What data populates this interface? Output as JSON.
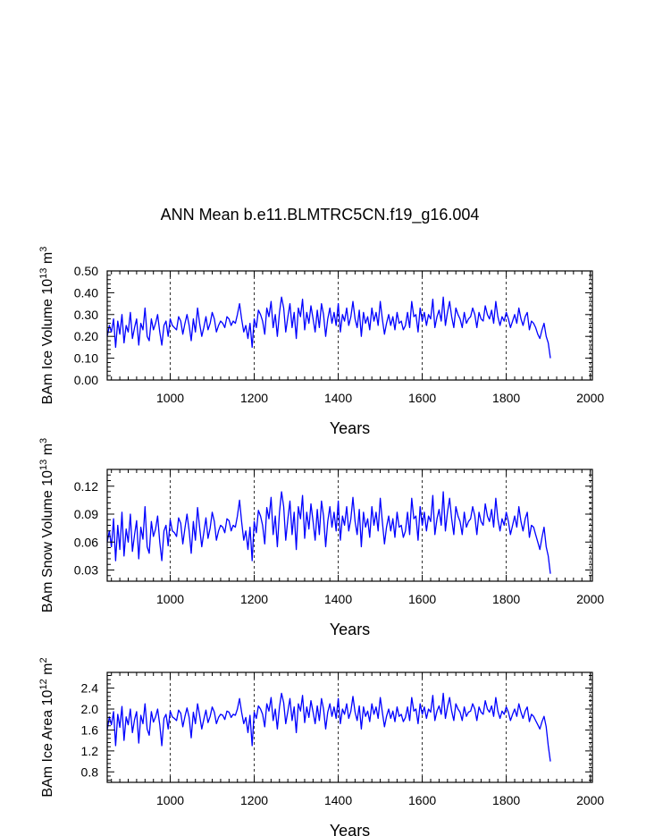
{
  "figure_title": "ANN Mean b.e11.BLMTRC5CN.f19_g16.004",
  "chart_data": [
    {
      "type": "line",
      "name": "ice-volume",
      "ylabel_pre": "BAm Ice Volume 10",
      "ylabel_exp1": "13",
      "ylabel_mid": " m",
      "ylabel_exp2": "3",
      "xlabel": "Years",
      "xlim": [
        850,
        2005
      ],
      "ylim": [
        0.0,
        0.5
      ],
      "xticks": [
        1000,
        1200,
        1400,
        1600,
        1800,
        2000
      ],
      "xtick_labels": [
        "1000",
        "1200",
        "1400",
        "1600",
        "1800",
        "2000"
      ],
      "yticks": [
        0.0,
        0.1,
        0.2,
        0.3,
        0.4,
        0.5
      ],
      "ytick_labels": [
        "0.00",
        "0.10",
        "0.20",
        "0.30",
        "0.40",
        "0.50"
      ],
      "grid_x": true,
      "line_color": "#0000ff",
      "series": [
        {
          "name": "Ice Volume",
          "x_start": 850,
          "x_step": 5,
          "values": [
            0.2,
            0.25,
            0.22,
            0.28,
            0.15,
            0.27,
            0.21,
            0.3,
            0.17,
            0.25,
            0.22,
            0.31,
            0.19,
            0.24,
            0.28,
            0.16,
            0.26,
            0.23,
            0.33,
            0.2,
            0.18,
            0.28,
            0.23,
            0.26,
            0.3,
            0.22,
            0.16,
            0.25,
            0.27,
            0.2,
            0.28,
            0.25,
            0.24,
            0.23,
            0.29,
            0.27,
            0.21,
            0.26,
            0.3,
            0.25,
            0.18,
            0.28,
            0.22,
            0.33,
            0.26,
            0.2,
            0.24,
            0.29,
            0.23,
            0.26,
            0.31,
            0.28,
            0.22,
            0.25,
            0.27,
            0.26,
            0.24,
            0.29,
            0.28,
            0.25,
            0.27,
            0.26,
            0.3,
            0.35,
            0.28,
            0.22,
            0.25,
            0.19,
            0.26,
            0.15,
            0.28,
            0.24,
            0.32,
            0.3,
            0.27,
            0.21,
            0.33,
            0.29,
            0.36,
            0.24,
            0.3,
            0.2,
            0.31,
            0.38,
            0.33,
            0.22,
            0.29,
            0.35,
            0.24,
            0.31,
            0.19,
            0.33,
            0.29,
            0.37,
            0.23,
            0.31,
            0.26,
            0.34,
            0.28,
            0.22,
            0.32,
            0.24,
            0.35,
            0.3,
            0.2,
            0.28,
            0.33,
            0.26,
            0.31,
            0.25,
            0.35,
            0.22,
            0.3,
            0.27,
            0.33,
            0.25,
            0.29,
            0.36,
            0.28,
            0.24,
            0.32,
            0.2,
            0.31,
            0.26,
            0.29,
            0.23,
            0.33,
            0.27,
            0.31,
            0.25,
            0.36,
            0.28,
            0.21,
            0.26,
            0.3,
            0.25,
            0.29,
            0.23,
            0.31,
            0.26,
            0.27,
            0.23,
            0.25,
            0.31,
            0.24,
            0.36,
            0.29,
            0.3,
            0.22,
            0.33,
            0.27,
            0.31,
            0.25,
            0.3,
            0.28,
            0.37,
            0.24,
            0.29,
            0.32,
            0.27,
            0.38,
            0.25,
            0.31,
            0.36,
            0.29,
            0.24,
            0.33,
            0.3,
            0.28,
            0.24,
            0.31,
            0.26,
            0.28,
            0.29,
            0.33,
            0.3,
            0.24,
            0.31,
            0.28,
            0.27,
            0.34,
            0.3,
            0.28,
            0.32,
            0.26,
            0.36,
            0.29,
            0.25,
            0.29,
            0.27,
            0.31,
            0.28,
            0.24,
            0.27,
            0.3,
            0.26,
            0.33,
            0.28,
            0.25,
            0.29,
            0.31,
            0.23,
            0.27,
            0.26,
            0.24,
            0.21,
            0.19,
            0.23,
            0.26,
            0.2,
            0.17,
            0.1
          ]
        }
      ]
    },
    {
      "type": "line",
      "name": "snow-volume",
      "ylabel_pre": "BAm Snow Volume 10",
      "ylabel_exp1": "13",
      "ylabel_mid": " m",
      "ylabel_exp2": "3",
      "xlabel": "Years",
      "xlim": [
        850,
        2005
      ],
      "ylim": [
        0.018,
        0.138
      ],
      "xticks": [
        1000,
        1200,
        1400,
        1600,
        1800,
        2000
      ],
      "xtick_labels": [
        "1000",
        "1200",
        "1400",
        "1600",
        "1800",
        "2000"
      ],
      "yticks": [
        0.03,
        0.06,
        0.09,
        0.12
      ],
      "ytick_labels": [
        "0.03",
        "0.06",
        "0.09",
        "0.12"
      ],
      "grid_x": true,
      "line_color": "#0000ff",
      "series": [
        {
          "name": "Snow Volume",
          "x_start": 850,
          "x_step": 5,
          "values": [
            0.06,
            0.072,
            0.055,
            0.085,
            0.04,
            0.078,
            0.052,
            0.092,
            0.045,
            0.074,
            0.06,
            0.09,
            0.05,
            0.068,
            0.083,
            0.042,
            0.076,
            0.063,
            0.098,
            0.055,
            0.048,
            0.082,
            0.066,
            0.074,
            0.088,
            0.06,
            0.04,
            0.072,
            0.078,
            0.056,
            0.084,
            0.072,
            0.07,
            0.066,
            0.086,
            0.08,
            0.058,
            0.075,
            0.09,
            0.072,
            0.048,
            0.082,
            0.062,
            0.097,
            0.076,
            0.055,
            0.07,
            0.086,
            0.064,
            0.075,
            0.092,
            0.082,
            0.062,
            0.072,
            0.078,
            0.076,
            0.07,
            0.085,
            0.083,
            0.072,
            0.078,
            0.076,
            0.088,
            0.105,
            0.082,
            0.062,
            0.072,
            0.052,
            0.076,
            0.04,
            0.082,
            0.07,
            0.094,
            0.088,
            0.078,
            0.058,
            0.097,
            0.085,
            0.108,
            0.068,
            0.088,
            0.055,
            0.092,
            0.114,
            0.098,
            0.062,
            0.085,
            0.104,
            0.068,
            0.092,
            0.052,
            0.098,
            0.085,
            0.11,
            0.064,
            0.092,
            0.074,
            0.101,
            0.082,
            0.062,
            0.095,
            0.068,
            0.104,
            0.088,
            0.055,
            0.082,
            0.098,
            0.076,
            0.092,
            0.072,
            0.104,
            0.062,
            0.088,
            0.078,
            0.098,
            0.072,
            0.085,
            0.108,
            0.082,
            0.068,
            0.095,
            0.055,
            0.092,
            0.076,
            0.085,
            0.065,
            0.098,
            0.078,
            0.092,
            0.072,
            0.107,
            0.082,
            0.058,
            0.076,
            0.088,
            0.072,
            0.085,
            0.065,
            0.092,
            0.076,
            0.078,
            0.065,
            0.072,
            0.092,
            0.068,
            0.107,
            0.085,
            0.088,
            0.062,
            0.098,
            0.078,
            0.092,
            0.072,
            0.088,
            0.082,
            0.11,
            0.068,
            0.085,
            0.095,
            0.078,
            0.114,
            0.072,
            0.092,
            0.107,
            0.085,
            0.068,
            0.098,
            0.088,
            0.082,
            0.068,
            0.092,
            0.076,
            0.082,
            0.085,
            0.098,
            0.088,
            0.068,
            0.092,
            0.082,
            0.078,
            0.101,
            0.088,
            0.082,
            0.095,
            0.076,
            0.107,
            0.085,
            0.072,
            0.085,
            0.078,
            0.092,
            0.082,
            0.068,
            0.078,
            0.088,
            0.076,
            0.098,
            0.082,
            0.072,
            0.085,
            0.092,
            0.065,
            0.078,
            0.076,
            0.068,
            0.06,
            0.052,
            0.065,
            0.076,
            0.055,
            0.045,
            0.026
          ]
        }
      ]
    },
    {
      "type": "line",
      "name": "ice-area",
      "ylabel_pre": "BAm Ice Area 10",
      "ylabel_exp1": "12",
      "ylabel_mid": " m",
      "ylabel_exp2": "2",
      "xlabel": "Years",
      "xlim": [
        850,
        2005
      ],
      "ylim": [
        0.6,
        2.7
      ],
      "xticks": [
        1000,
        1200,
        1400,
        1600,
        1800,
        2000
      ],
      "xtick_labels": [
        "1000",
        "1200",
        "1400",
        "1600",
        "1800",
        "2000"
      ],
      "yticks": [
        0.8,
        1.2,
        1.6,
        2.0,
        2.4
      ],
      "ytick_labels": [
        "0.8",
        "1.2",
        "1.6",
        "2.0",
        "2.4"
      ],
      "grid_x": true,
      "line_color": "#0000ff",
      "series": [
        {
          "name": "Ice Area",
          "x_start": 850,
          "x_step": 5,
          "values": [
            1.6,
            1.85,
            1.7,
            1.95,
            1.3,
            1.9,
            1.65,
            2.05,
            1.4,
            1.85,
            1.7,
            2.0,
            1.55,
            1.8,
            1.95,
            1.35,
            1.88,
            1.72,
            2.1,
            1.62,
            1.5,
            1.95,
            1.75,
            1.85,
            2.0,
            1.7,
            1.3,
            1.82,
            1.9,
            1.62,
            1.96,
            1.85,
            1.82,
            1.78,
            1.98,
            1.92,
            1.66,
            1.86,
            2.02,
            1.84,
            1.45,
            1.94,
            1.72,
            2.1,
            1.88,
            1.62,
            1.8,
            1.98,
            1.74,
            1.86,
            2.04,
            1.94,
            1.72,
            1.84,
            1.9,
            1.88,
            1.8,
            1.96,
            1.94,
            1.84,
            1.9,
            1.88,
            2.0,
            2.2,
            1.94,
            1.72,
            1.84,
            1.55,
            1.88,
            1.3,
            1.94,
            1.82,
            2.06,
            2.0,
            1.9,
            1.66,
            2.1,
            1.96,
            2.22,
            1.78,
            2.0,
            1.62,
            2.04,
            2.3,
            2.12,
            1.72,
            1.96,
            2.2,
            1.78,
            2.04,
            1.55,
            2.1,
            1.96,
            2.26,
            1.74,
            2.04,
            1.84,
            2.16,
            1.94,
            1.72,
            2.06,
            1.78,
            2.2,
            2.0,
            1.62,
            1.94,
            2.1,
            1.86,
            2.04,
            1.82,
            2.2,
            1.72,
            2.0,
            1.9,
            2.1,
            1.82,
            1.96,
            2.24,
            1.94,
            1.78,
            2.06,
            1.62,
            2.04,
            1.86,
            1.96,
            1.76,
            2.1,
            1.9,
            2.04,
            1.82,
            2.22,
            1.94,
            1.66,
            1.86,
            2.0,
            1.82,
            1.96,
            1.76,
            2.04,
            1.86,
            1.9,
            1.76,
            1.84,
            2.04,
            1.78,
            2.22,
            1.96,
            2.0,
            1.72,
            2.1,
            1.9,
            2.04,
            1.82,
            2.0,
            1.94,
            2.26,
            1.78,
            1.96,
            2.06,
            1.9,
            2.3,
            1.82,
            2.04,
            2.22,
            1.96,
            1.78,
            2.1,
            2.0,
            1.94,
            1.78,
            2.04,
            1.86,
            1.94,
            1.96,
            2.1,
            2.0,
            1.78,
            2.04,
            1.94,
            1.9,
            2.16,
            2.0,
            1.94,
            2.06,
            1.86,
            2.22,
            1.96,
            1.82,
            1.96,
            1.9,
            2.04,
            1.94,
            1.78,
            1.9,
            2.0,
            1.86,
            2.1,
            1.94,
            1.82,
            1.96,
            2.04,
            1.76,
            1.9,
            1.86,
            1.78,
            1.7,
            1.62,
            1.76,
            1.86,
            1.66,
            1.3,
            1.0
          ]
        }
      ]
    }
  ]
}
